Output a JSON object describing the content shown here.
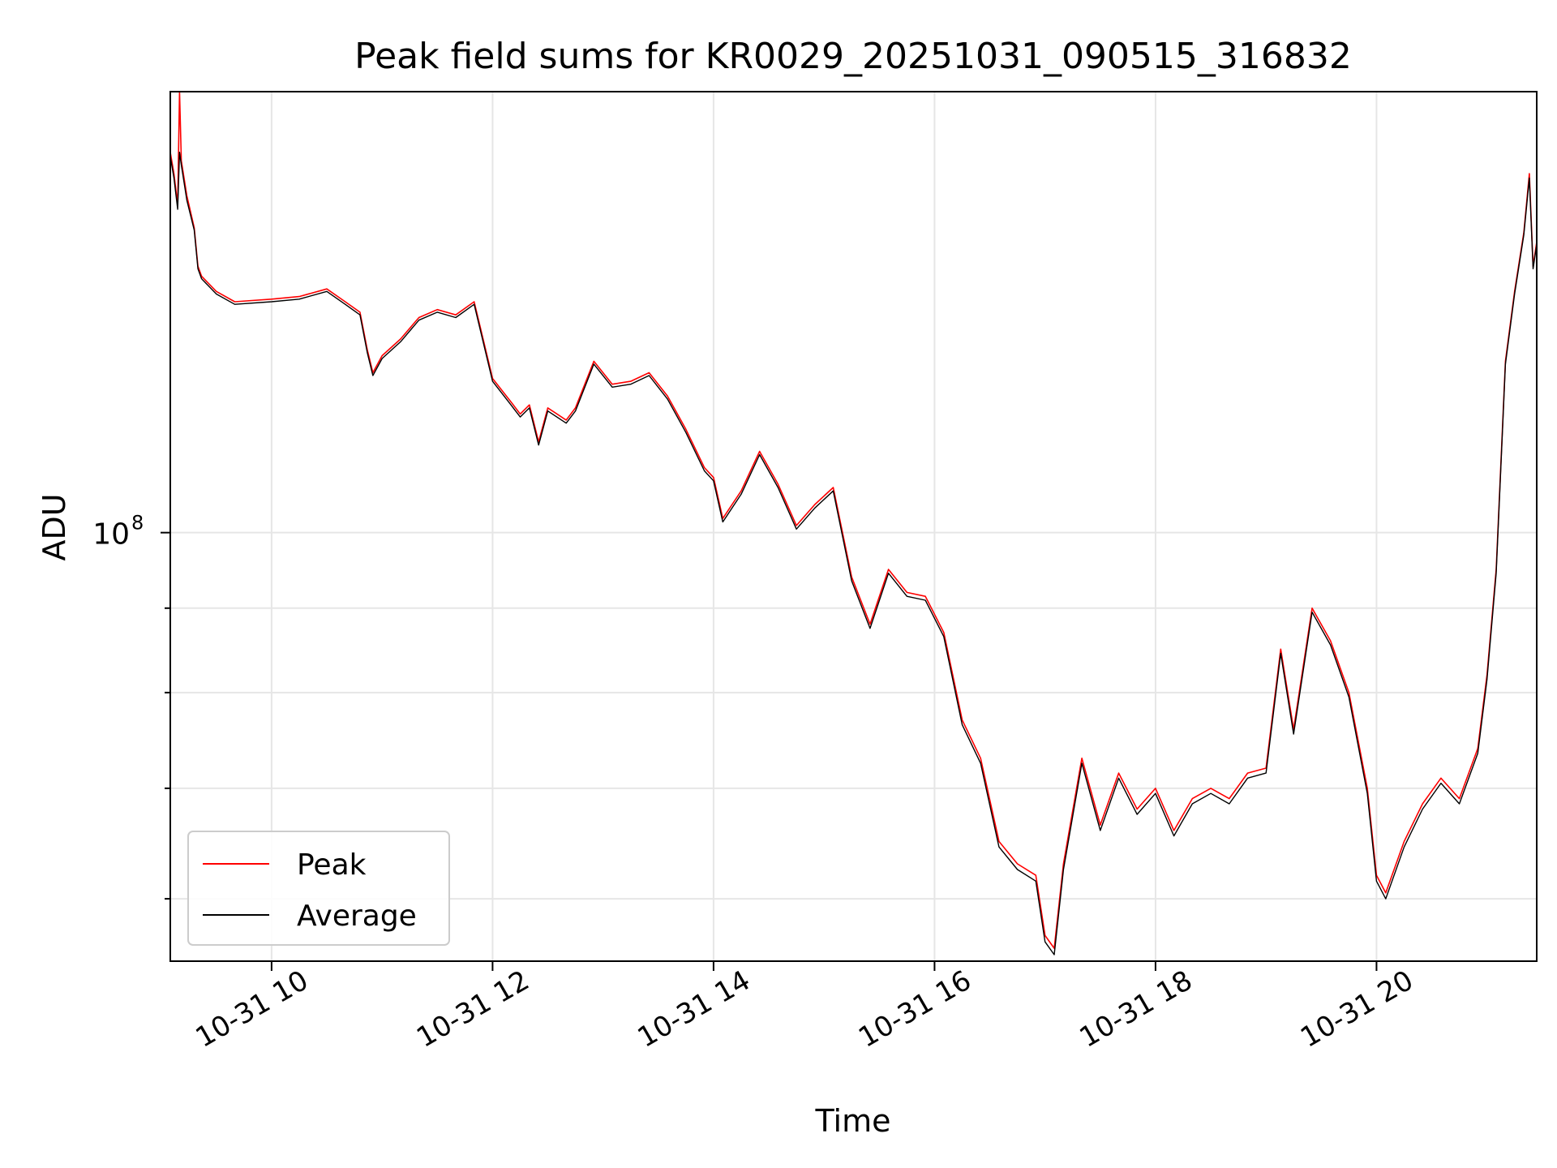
{
  "chart_data": {
    "type": "line",
    "title": "Peak field sums for KR0029_20251031_090515_316832",
    "xlabel": "Time",
    "ylabel": "ADU",
    "y_scale": "log",
    "ylim": [
      55000000,
      185000000
    ],
    "xlim": [
      "2025-10-31 09:05",
      "2025-10-31 21:27"
    ],
    "x_ticks": [
      {
        "at": "2025-10-31 10:00",
        "label": "10-31 10"
      },
      {
        "at": "2025-10-31 12:00",
        "label": "10-31 12"
      },
      {
        "at": "2025-10-31 14:00",
        "label": "10-31 14"
      },
      {
        "at": "2025-10-31 16:00",
        "label": "10-31 16"
      },
      {
        "at": "2025-10-31 18:00",
        "label": "10-31 18"
      },
      {
        "at": "2025-10-31 20:00",
        "label": "10-31 20"
      }
    ],
    "y_major_ticks": [
      {
        "value": 100000000,
        "label": "10",
        "exponent": "8"
      }
    ],
    "y_minor_ticks": [
      60000000,
      70000000,
      80000000,
      90000000
    ],
    "grid": true,
    "legend": "lower-left",
    "colors": {
      "Peak": "#ff0000",
      "Average": "#000000"
    },
    "series": [
      {
        "name": "Peak",
        "points": [
          [
            "2025-10-31 09:05",
            170000000
          ],
          [
            "2025-10-31 09:07",
            165000000
          ],
          [
            "2025-10-31 09:09",
            158000000
          ],
          [
            "2025-10-31 09:10",
            185000000
          ],
          [
            "2025-10-31 09:11",
            168000000
          ],
          [
            "2025-10-31 09:14",
            160000000
          ],
          [
            "2025-10-31 09:18",
            153000000
          ],
          [
            "2025-10-31 09:20",
            145000000
          ],
          [
            "2025-10-31 09:22",
            143000000
          ],
          [
            "2025-10-31 09:30",
            140000000
          ],
          [
            "2025-10-31 09:40",
            138000000
          ],
          [
            "2025-10-31 10:00",
            138500000
          ],
          [
            "2025-10-31 10:15",
            139000000
          ],
          [
            "2025-10-31 10:30",
            140500000
          ],
          [
            "2025-10-31 10:40",
            138000000
          ],
          [
            "2025-10-31 10:48",
            136000000
          ],
          [
            "2025-10-31 10:52",
            129000000
          ],
          [
            "2025-10-31 10:55",
            125000000
          ],
          [
            "2025-10-31 11:00",
            128000000
          ],
          [
            "2025-10-31 11:10",
            131000000
          ],
          [
            "2025-10-31 11:20",
            135000000
          ],
          [
            "2025-10-31 11:30",
            136500000
          ],
          [
            "2025-10-31 11:40",
            135500000
          ],
          [
            "2025-10-31 11:50",
            138000000
          ],
          [
            "2025-10-31 12:00",
            124000000
          ],
          [
            "2025-10-31 12:10",
            120000000
          ],
          [
            "2025-10-31 12:15",
            118000000
          ],
          [
            "2025-10-31 12:20",
            119500000
          ],
          [
            "2025-10-31 12:25",
            113500000
          ],
          [
            "2025-10-31 12:30",
            119000000
          ],
          [
            "2025-10-31 12:40",
            117000000
          ],
          [
            "2025-10-31 12:45",
            119000000
          ],
          [
            "2025-10-31 12:55",
            127000000
          ],
          [
            "2025-10-31 13:05",
            123000000
          ],
          [
            "2025-10-31 13:15",
            123500000
          ],
          [
            "2025-10-31 13:25",
            125000000
          ],
          [
            "2025-10-31 13:35",
            121000000
          ],
          [
            "2025-10-31 13:45",
            115500000
          ],
          [
            "2025-10-31 13:55",
            109500000
          ],
          [
            "2025-10-31 14:00",
            108000000
          ],
          [
            "2025-10-31 14:05",
            102000000
          ],
          [
            "2025-10-31 14:15",
            106000000
          ],
          [
            "2025-10-31 14:25",
            112000000
          ],
          [
            "2025-10-31 14:35",
            107000000
          ],
          [
            "2025-10-31 14:45",
            101000000
          ],
          [
            "2025-10-31 14:55",
            104000000
          ],
          [
            "2025-10-31 15:05",
            106500000
          ],
          [
            "2025-10-31 15:15",
            94000000
          ],
          [
            "2025-10-31 15:25",
            88000000
          ],
          [
            "2025-10-31 15:35",
            95000000
          ],
          [
            "2025-10-31 15:45",
            92000000
          ],
          [
            "2025-10-31 15:55",
            91500000
          ],
          [
            "2025-10-31 16:05",
            87000000
          ],
          [
            "2025-10-31 16:15",
            77000000
          ],
          [
            "2025-10-31 16:25",
            73000000
          ],
          [
            "2025-10-31 16:35",
            65000000
          ],
          [
            "2025-10-31 16:45",
            63000000
          ],
          [
            "2025-10-31 16:55",
            62000000
          ],
          [
            "2025-10-31 17:00",
            57000000
          ],
          [
            "2025-10-31 17:05",
            56000000
          ],
          [
            "2025-10-31 17:10",
            63000000
          ],
          [
            "2025-10-31 17:20",
            73000000
          ],
          [
            "2025-10-31 17:30",
            66500000
          ],
          [
            "2025-10-31 17:40",
            71500000
          ],
          [
            "2025-10-31 17:50",
            68000000
          ],
          [
            "2025-10-31 18:00",
            70000000
          ],
          [
            "2025-10-31 18:10",
            66000000
          ],
          [
            "2025-10-31 18:20",
            69000000
          ],
          [
            "2025-10-31 18:30",
            70000000
          ],
          [
            "2025-10-31 18:40",
            69000000
          ],
          [
            "2025-10-31 18:50",
            71500000
          ],
          [
            "2025-10-31 19:00",
            72000000
          ],
          [
            "2025-10-31 19:08",
            85000000
          ],
          [
            "2025-10-31 19:15",
            76000000
          ],
          [
            "2025-10-31 19:25",
            90000000
          ],
          [
            "2025-10-31 19:35",
            86000000
          ],
          [
            "2025-10-31 19:45",
            80000000
          ],
          [
            "2025-10-31 19:55",
            70000000
          ],
          [
            "2025-10-31 20:00",
            62000000
          ],
          [
            "2025-10-31 20:05",
            60500000
          ],
          [
            "2025-10-31 20:15",
            65000000
          ],
          [
            "2025-10-31 20:25",
            68500000
          ],
          [
            "2025-10-31 20:35",
            71000000
          ],
          [
            "2025-10-31 20:45",
            69000000
          ],
          [
            "2025-10-31 20:55",
            74000000
          ],
          [
            "2025-10-31 21:00",
            82000000
          ],
          [
            "2025-10-31 21:05",
            95000000
          ],
          [
            "2025-10-31 21:10",
            127000000
          ],
          [
            "2025-10-31 21:15",
            140000000
          ],
          [
            "2025-10-31 21:20",
            152000000
          ],
          [
            "2025-10-31 21:23",
            165000000
          ],
          [
            "2025-10-31 21:25",
            145000000
          ],
          [
            "2025-10-31 21:27",
            150000000
          ]
        ]
      },
      {
        "name": "Average",
        "points": [
          [
            "2025-10-31 09:05",
            169000000
          ],
          [
            "2025-10-31 09:07",
            164000000
          ],
          [
            "2025-10-31 09:09",
            157000000
          ],
          [
            "2025-10-31 09:10",
            170000000
          ],
          [
            "2025-10-31 09:11",
            167000000
          ],
          [
            "2025-10-31 09:14",
            159000000
          ],
          [
            "2025-10-31 09:18",
            152500000
          ],
          [
            "2025-10-31 09:20",
            144500000
          ],
          [
            "2025-10-31 09:22",
            142500000
          ],
          [
            "2025-10-31 09:30",
            139500000
          ],
          [
            "2025-10-31 09:40",
            137500000
          ],
          [
            "2025-10-31 10:00",
            138000000
          ],
          [
            "2025-10-31 10:15",
            138500000
          ],
          [
            "2025-10-31 10:30",
            140000000
          ],
          [
            "2025-10-31 10:40",
            137500000
          ],
          [
            "2025-10-31 10:48",
            135500000
          ],
          [
            "2025-10-31 10:52",
            128500000
          ],
          [
            "2025-10-31 10:55",
            124500000
          ],
          [
            "2025-10-31 11:00",
            127500000
          ],
          [
            "2025-10-31 11:10",
            130500000
          ],
          [
            "2025-10-31 11:20",
            134500000
          ],
          [
            "2025-10-31 11:30",
            136000000
          ],
          [
            "2025-10-31 11:40",
            135000000
          ],
          [
            "2025-10-31 11:50",
            137500000
          ],
          [
            "2025-10-31 12:00",
            123500000
          ],
          [
            "2025-10-31 12:10",
            119500000
          ],
          [
            "2025-10-31 12:15",
            117500000
          ],
          [
            "2025-10-31 12:20",
            119000000
          ],
          [
            "2025-10-31 12:25",
            113000000
          ],
          [
            "2025-10-31 12:30",
            118500000
          ],
          [
            "2025-10-31 12:40",
            116500000
          ],
          [
            "2025-10-31 12:45",
            118500000
          ],
          [
            "2025-10-31 12:55",
            126500000
          ],
          [
            "2025-10-31 13:05",
            122500000
          ],
          [
            "2025-10-31 13:15",
            123000000
          ],
          [
            "2025-10-31 13:25",
            124500000
          ],
          [
            "2025-10-31 13:35",
            120500000
          ],
          [
            "2025-10-31 13:45",
            115000000
          ],
          [
            "2025-10-31 13:55",
            109000000
          ],
          [
            "2025-10-31 14:00",
            107500000
          ],
          [
            "2025-10-31 14:05",
            101500000
          ],
          [
            "2025-10-31 14:15",
            105500000
          ],
          [
            "2025-10-31 14:25",
            111500000
          ],
          [
            "2025-10-31 14:35",
            106500000
          ],
          [
            "2025-10-31 14:45",
            100500000
          ],
          [
            "2025-10-31 14:55",
            103500000
          ],
          [
            "2025-10-31 15:05",
            106000000
          ],
          [
            "2025-10-31 15:15",
            93500000
          ],
          [
            "2025-10-31 15:25",
            87500000
          ],
          [
            "2025-10-31 15:35",
            94500000
          ],
          [
            "2025-10-31 15:45",
            91500000
          ],
          [
            "2025-10-31 15:55",
            91000000
          ],
          [
            "2025-10-31 16:05",
            86500000
          ],
          [
            "2025-10-31 16:15",
            76500000
          ],
          [
            "2025-10-31 16:25",
            72500000
          ],
          [
            "2025-10-31 16:35",
            64500000
          ],
          [
            "2025-10-31 16:45",
            62500000
          ],
          [
            "2025-10-31 16:55",
            61500000
          ],
          [
            "2025-10-31 17:00",
            56500000
          ],
          [
            "2025-10-31 17:05",
            55500000
          ],
          [
            "2025-10-31 17:10",
            62500000
          ],
          [
            "2025-10-31 17:20",
            72500000
          ],
          [
            "2025-10-31 17:30",
            66000000
          ],
          [
            "2025-10-31 17:40",
            71000000
          ],
          [
            "2025-10-31 17:50",
            67500000
          ],
          [
            "2025-10-31 18:00",
            69500000
          ],
          [
            "2025-10-31 18:10",
            65500000
          ],
          [
            "2025-10-31 18:20",
            68500000
          ],
          [
            "2025-10-31 18:30",
            69500000
          ],
          [
            "2025-10-31 18:40",
            68500000
          ],
          [
            "2025-10-31 18:50",
            71000000
          ],
          [
            "2025-10-31 19:00",
            71500000
          ],
          [
            "2025-10-31 19:08",
            84500000
          ],
          [
            "2025-10-31 19:15",
            75500000
          ],
          [
            "2025-10-31 19:25",
            89500000
          ],
          [
            "2025-10-31 19:35",
            85500000
          ],
          [
            "2025-10-31 19:45",
            79500000
          ],
          [
            "2025-10-31 19:55",
            69500000
          ],
          [
            "2025-10-31 20:00",
            61500000
          ],
          [
            "2025-10-31 20:05",
            60000000
          ],
          [
            "2025-10-31 20:15",
            64500000
          ],
          [
            "2025-10-31 20:25",
            68000000
          ],
          [
            "2025-10-31 20:35",
            70500000
          ],
          [
            "2025-10-31 20:45",
            68500000
          ],
          [
            "2025-10-31 20:55",
            73500000
          ],
          [
            "2025-10-31 21:00",
            81500000
          ],
          [
            "2025-10-31 21:05",
            94500000
          ],
          [
            "2025-10-31 21:10",
            126500000
          ],
          [
            "2025-10-31 21:15",
            139500000
          ],
          [
            "2025-10-31 21:20",
            151500000
          ],
          [
            "2025-10-31 21:23",
            164000000
          ],
          [
            "2025-10-31 21:25",
            144500000
          ],
          [
            "2025-10-31 21:27",
            149500000
          ]
        ]
      }
    ]
  }
}
